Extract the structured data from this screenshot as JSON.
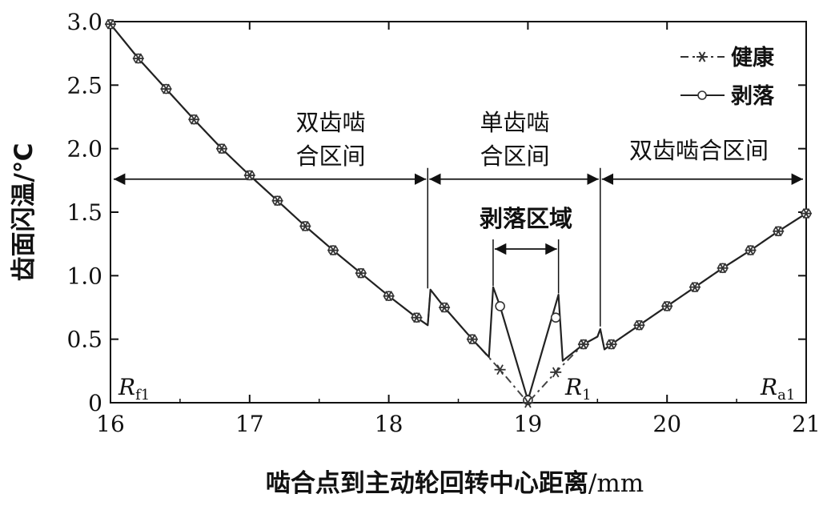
{
  "chart_data": {
    "type": "line",
    "xlabel_main": "啮合点到主动轮回转中心距离",
    "xlabel_unit": "/mm",
    "ylabel": "齿面闪温/℃",
    "xlim": [
      16,
      21
    ],
    "ylim": [
      0,
      3.0
    ],
    "x_ticks": [
      "16",
      "17",
      "18",
      "19",
      "20",
      "21"
    ],
    "y_ticks": [
      "0",
      "0.5",
      "1.0",
      "1.5",
      "2.0",
      "2.5",
      "3.0"
    ],
    "series": [
      {
        "name": "健康",
        "style": "dashdot-asterisk",
        "points": [
          [
            16.0,
            2.98
          ],
          [
            16.2,
            2.71
          ],
          [
            16.4,
            2.47
          ],
          [
            16.6,
            2.23
          ],
          [
            16.8,
            2.0
          ],
          [
            17.0,
            1.79
          ],
          [
            17.2,
            1.59
          ],
          [
            17.4,
            1.39
          ],
          [
            17.6,
            1.2
          ],
          [
            17.8,
            1.02
          ],
          [
            18.0,
            0.84
          ],
          [
            18.2,
            0.67
          ],
          [
            18.28,
            0.61
          ],
          [
            18.3,
            0.89
          ],
          [
            18.4,
            0.75
          ],
          [
            18.6,
            0.5
          ],
          [
            18.8,
            0.26
          ],
          [
            19.0,
            0.0
          ],
          [
            19.2,
            0.24
          ],
          [
            19.4,
            0.46
          ],
          [
            19.5,
            0.52
          ],
          [
            19.52,
            0.58
          ],
          [
            19.55,
            0.42
          ],
          [
            19.6,
            0.46
          ],
          [
            19.8,
            0.61
          ],
          [
            20.0,
            0.76
          ],
          [
            20.2,
            0.91
          ],
          [
            20.4,
            1.06
          ],
          [
            20.6,
            1.2
          ],
          [
            20.8,
            1.35
          ],
          [
            21.0,
            1.49
          ]
        ],
        "markers_x": [
          16.0,
          16.2,
          16.4,
          16.6,
          16.8,
          17.0,
          17.2,
          17.4,
          17.6,
          17.8,
          18.0,
          18.2,
          18.4,
          18.6,
          18.8,
          19.0,
          19.2,
          19.4,
          19.6,
          19.8,
          20.0,
          20.2,
          20.4,
          20.6,
          20.8,
          21.0
        ],
        "markers_y": [
          2.98,
          2.71,
          2.47,
          2.23,
          2.0,
          1.79,
          1.59,
          1.39,
          1.2,
          1.02,
          0.84,
          0.67,
          0.75,
          0.5,
          0.26,
          0.0,
          0.24,
          0.46,
          0.46,
          0.61,
          0.76,
          0.91,
          1.06,
          1.2,
          1.35,
          1.49
        ]
      },
      {
        "name": "剥落",
        "style": "solid-circle",
        "points": [
          [
            16.0,
            2.98
          ],
          [
            16.2,
            2.71
          ],
          [
            16.4,
            2.47
          ],
          [
            16.6,
            2.23
          ],
          [
            16.8,
            2.0
          ],
          [
            17.0,
            1.79
          ],
          [
            17.2,
            1.59
          ],
          [
            17.4,
            1.39
          ],
          [
            17.6,
            1.2
          ],
          [
            17.8,
            1.02
          ],
          [
            18.0,
            0.84
          ],
          [
            18.2,
            0.67
          ],
          [
            18.28,
            0.61
          ],
          [
            18.3,
            0.89
          ],
          [
            18.4,
            0.75
          ],
          [
            18.6,
            0.5
          ],
          [
            18.72,
            0.36
          ],
          [
            18.75,
            0.91
          ],
          [
            18.8,
            0.76
          ],
          [
            19.0,
            0.02
          ],
          [
            19.22,
            0.85
          ],
          [
            19.25,
            0.33
          ],
          [
            19.4,
            0.46
          ],
          [
            19.5,
            0.52
          ],
          [
            19.52,
            0.58
          ],
          [
            19.55,
            0.42
          ],
          [
            19.6,
            0.46
          ],
          [
            19.8,
            0.61
          ],
          [
            20.0,
            0.76
          ],
          [
            20.2,
            0.91
          ],
          [
            20.4,
            1.06
          ],
          [
            20.6,
            1.2
          ],
          [
            20.8,
            1.35
          ],
          [
            21.0,
            1.49
          ]
        ],
        "markers_x": [
          16.0,
          16.2,
          16.4,
          16.6,
          16.8,
          17.0,
          17.2,
          17.4,
          17.6,
          17.8,
          18.0,
          18.2,
          18.4,
          18.6,
          18.8,
          19.0,
          19.2,
          19.4,
          19.6,
          19.8,
          20.0,
          20.2,
          20.4,
          20.6,
          20.8,
          21.0
        ],
        "markers_y": [
          2.98,
          2.71,
          2.47,
          2.23,
          2.0,
          1.79,
          1.59,
          1.39,
          1.2,
          1.02,
          0.84,
          0.67,
          0.75,
          0.5,
          0.76,
          0.02,
          0.67,
          0.46,
          0.46,
          0.61,
          0.76,
          0.91,
          1.06,
          1.2,
          1.35,
          1.49
        ]
      }
    ],
    "legend": {
      "position": "top-right",
      "entries": [
        "健康",
        "剥落"
      ]
    },
    "annotations": {
      "double_left": {
        "line1": "双齿啮",
        "line2": "合区间"
      },
      "single": {
        "line1": "单齿啮",
        "line2": "合区间"
      },
      "double_right": "双齿啮合区间",
      "spall_region": "剥落区域",
      "boundaries_x": [
        18.28,
        19.52
      ],
      "spall_bounds_x": [
        18.75,
        19.22
      ],
      "range_arrow_y": 1.76,
      "spall_arrow_y": 1.21
    },
    "corner_labels": {
      "left": {
        "main": "R",
        "sub": "f1"
      },
      "mid": {
        "main": "R",
        "sub": "1"
      },
      "right": {
        "main": "R",
        "sub": "a1"
      }
    },
    "grid": false
  }
}
